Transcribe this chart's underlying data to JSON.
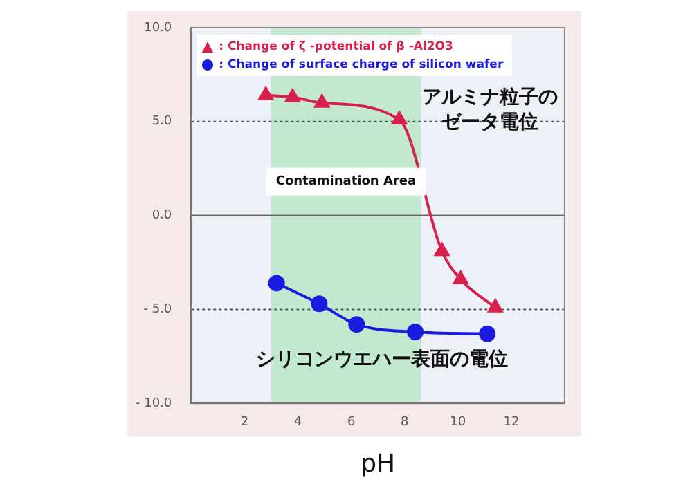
{
  "chart_data": {
    "type": "line",
    "xlabel": "pH",
    "xlim": [
      0,
      14
    ],
    "xticks": [
      2,
      4,
      6,
      8,
      10,
      12
    ],
    "ylim": [
      -10,
      10
    ],
    "yticks": [
      {
        "value": 10,
        "label": "10.0"
      },
      {
        "value": 5,
        "label": "5.0"
      },
      {
        "value": 0,
        "label": "0.0"
      },
      {
        "value": -5,
        "label": "- 5.0"
      },
      {
        "value": -10,
        "label": "- 10.0"
      }
    ],
    "series": [
      {
        "name": ": Change of ζ -potential of β -Al2O3",
        "color": "#d8204c",
        "marker": "triangle",
        "x": [
          2.8,
          3.8,
          4.9,
          7.8,
          9.4,
          10.1,
          11.4
        ],
        "values": [
          6.4,
          6.3,
          6.0,
          5.1,
          -1.9,
          -3.4,
          -4.9
        ]
      },
      {
        "name": ": Change of surface charge of silicon wafer",
        "color": "#1c1ce0",
        "marker": "circle",
        "x": [
          3.2,
          4.8,
          6.2,
          8.4,
          11.1
        ],
        "values": [
          -3.6,
          -4.7,
          -5.8,
          -6.2,
          -6.3
        ]
      }
    ],
    "ref_lines": [
      {
        "axis": "y",
        "value": 5,
        "line_style": "dotted",
        "color": "#555555"
      },
      {
        "axis": "y",
        "value": 0,
        "line_style": "solid",
        "color": "#666666"
      },
      {
        "axis": "y",
        "value": -5,
        "line_style": "dotted",
        "color": "#555555"
      }
    ],
    "bands": [
      {
        "axis": "x",
        "from": 3,
        "to": 8.6,
        "label": "Contamination Area",
        "color": "#c2e8d0"
      }
    ],
    "annotations": [
      "アルミナ粒子のゼータ電位",
      "シリコンウエハー表面の電位"
    ],
    "legend": "top left"
  }
}
